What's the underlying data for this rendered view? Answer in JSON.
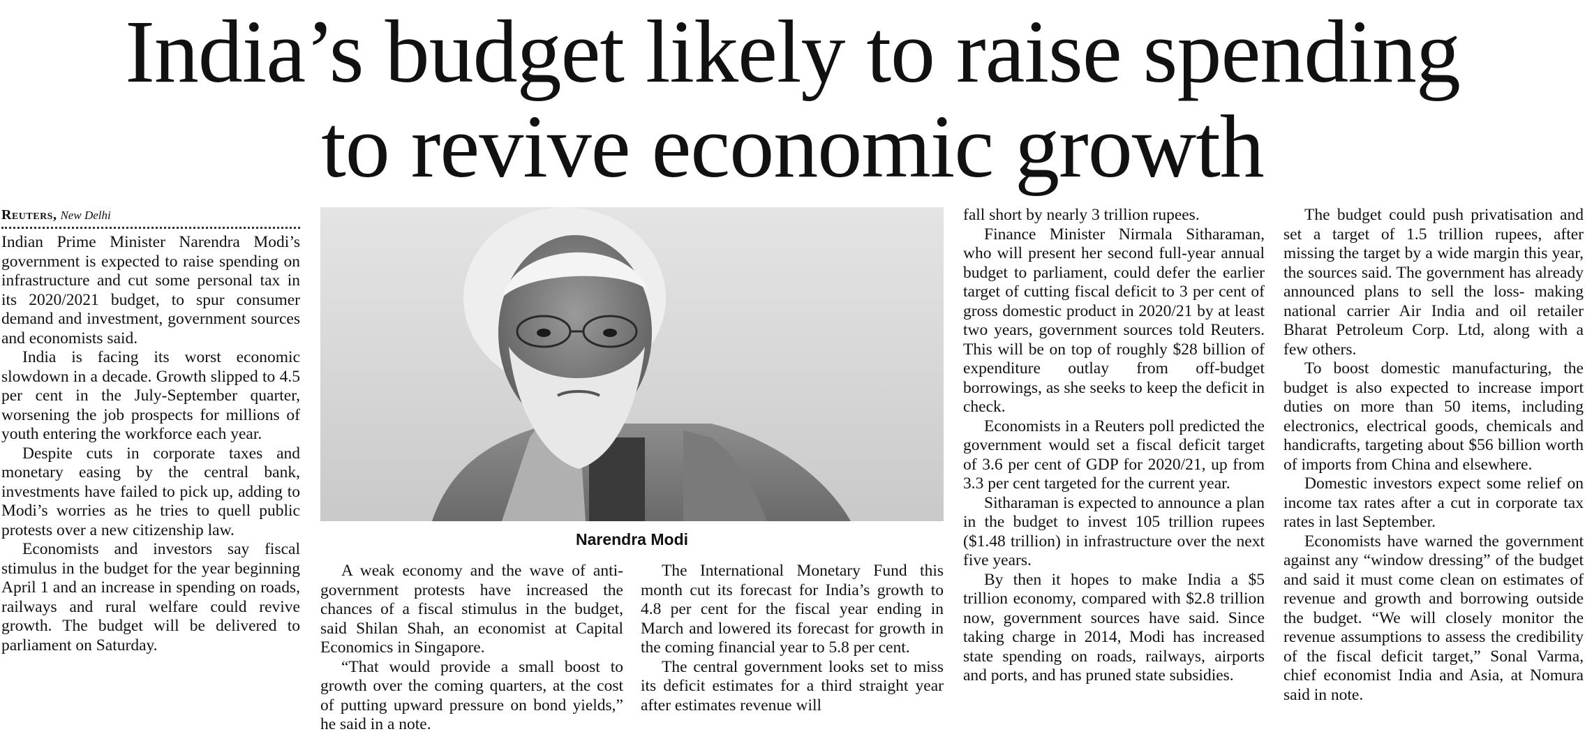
{
  "headline": {
    "line1": "India’s budget likely to raise spending",
    "line2": "to revive economic growth"
  },
  "byline": {
    "agency": "Reuters,",
    "place": "New Delhi"
  },
  "photo": {
    "subject": "portrait of man with white beard and glasses",
    "caption": "Narendra Modi"
  },
  "columns": {
    "col1": [
      "Indian Prime Minister Narendra Modi’s government is expected to raise spending on infrastructure and cut some personal tax in its 2020/2021 budget, to spur consumer demand and investment, government sources and economists said.",
      "India is facing its worst economic slowdown in a decade. Growth slipped to 4.5 per cent in the July-September quarter, worsening the job prospects for millions of youth entering the workforce each year.",
      "Despite cuts in corporate taxes and monetary easing by the central bank, investments have failed to pick up, adding to Modi’s worries as he tries to quell public protests over a new citizenship law.",
      "Economists and investors say fiscal stimulus in the budget for the year beginning April 1 and an increase in spending on roads, railways and rural welfare could revive growth. The budget will be delivered to parliament on Saturday."
    ],
    "col2": [
      "A weak economy and the wave of anti-government protests have increased the chances of a fiscal stimulus in the budget, said Shilan Shah, an economist at Capital Economics in Singapore.",
      "“That would provide a small boost to growth over the coming quarters, at the cost of putting upward pressure on bond yields,” he said in a note."
    ],
    "col3": [
      "The International Monetary Fund this month cut its forecast for India’s growth to 4.8 per cent for the fiscal year ending in March and lowered its forecast for growth in the coming financial year to 5.8 per cent.",
      "The central government looks set to miss its deficit estimates for a third straight year after estimates revenue will"
    ],
    "col4": [
      "fall short by nearly 3 trillion rupees.",
      "Finance Minister Nirmala Sitharaman, who will present her second full-year annual budget to parliament, could defer the earlier target of cutting fiscal deficit to 3 per cent of gross domestic product in 2020/21 by at least two years, government sources told Reuters. This will be on top of roughly $28 billion of expenditure outlay from off-budget borrowings, as she seeks to keep the deficit in check.",
      "Economists in a Reuters poll predicted the government would set a fiscal deficit target of 3.6 per cent of GDP for 2020/21, up from 3.3 per cent targeted for the current year.",
      "Sitharaman is expected to announce a plan in the budget to invest 105 trillion rupees ($1.48 trillion) in infrastructure over the next five years.",
      "By then it hopes to make India a $5 trillion economy, compared with $2.8 trillion now, government sources have said. Since taking charge in 2014, Modi has increased state spending on roads, railways, airports and ports, and has pruned state subsidies."
    ],
    "col5": [
      "The budget could push privatisation and set a target of 1.5 trillion rupees, after missing the target by a wide margin this year, the sources said. The government has already announced plans to sell the loss- making national carrier Air India and oil retailer Bharat Petroleum Corp. Ltd, along with a few others.",
      "To boost domestic manufacturing, the budget is also expected to increase import duties on more than 50 items, including electronics, electrical goods, chemicals and handicrafts, targeting about $56 billion worth of imports from China and elsewhere.",
      "Domestic investors expect some relief on income tax rates after a cut in corporate tax rates in last September.",
      "Economists have warned the government against any “window dressing” of the budget and said it must come clean on estimates of revenue and growth and borrowing outside the budget. “We will closely monitor the revenue assumptions to assess the credibility of the fiscal deficit target,” Sonal Varma, chief economist India and Asia, at Nomura said in note."
    ]
  }
}
